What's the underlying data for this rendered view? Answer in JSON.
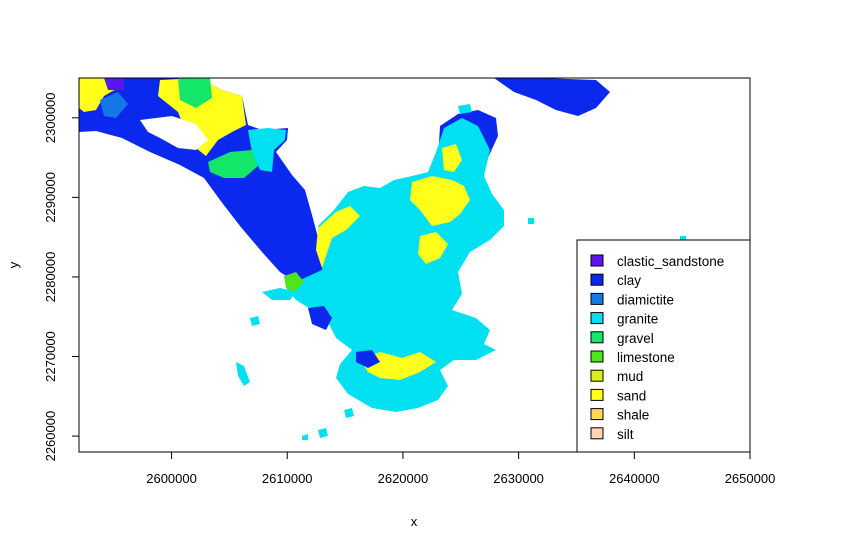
{
  "chart_data": {
    "type": "map",
    "xlabel": "x",
    "ylabel": "y",
    "xlim": [
      2592000,
      2650000
    ],
    "ylim": [
      2258000,
      2305000
    ],
    "x_ticks": [
      2600000,
      2610000,
      2620000,
      2630000,
      2640000,
      2650000
    ],
    "x_tick_labels": [
      "2600000",
      "2610000",
      "2620000",
      "2630000",
      "2640000",
      "2650000"
    ],
    "y_ticks": [
      2260000,
      2270000,
      2280000,
      2290000,
      2300000
    ],
    "y_tick_labels": [
      "2260000",
      "2270000",
      "2280000",
      "2290000",
      "2300000"
    ],
    "legend_position": "bottom-right",
    "legend": [
      {
        "label": "clastic_sandstone",
        "color": "#5b16f0"
      },
      {
        "label": "clay",
        "color": "#0b28ee"
      },
      {
        "label": "diamictite",
        "color": "#1577e6"
      },
      {
        "label": "granite",
        "color": "#00e0f0"
      },
      {
        "label": "gravel",
        "color": "#14e66a"
      },
      {
        "label": "limestone",
        "color": "#4ee61a"
      },
      {
        "label": "mud",
        "color": "#d9ef17"
      },
      {
        "label": "sand",
        "color": "#ffff1a"
      },
      {
        "label": "shale",
        "color": "#ffd75a"
      },
      {
        "label": "silt",
        "color": "#ffd4ae"
      }
    ]
  }
}
